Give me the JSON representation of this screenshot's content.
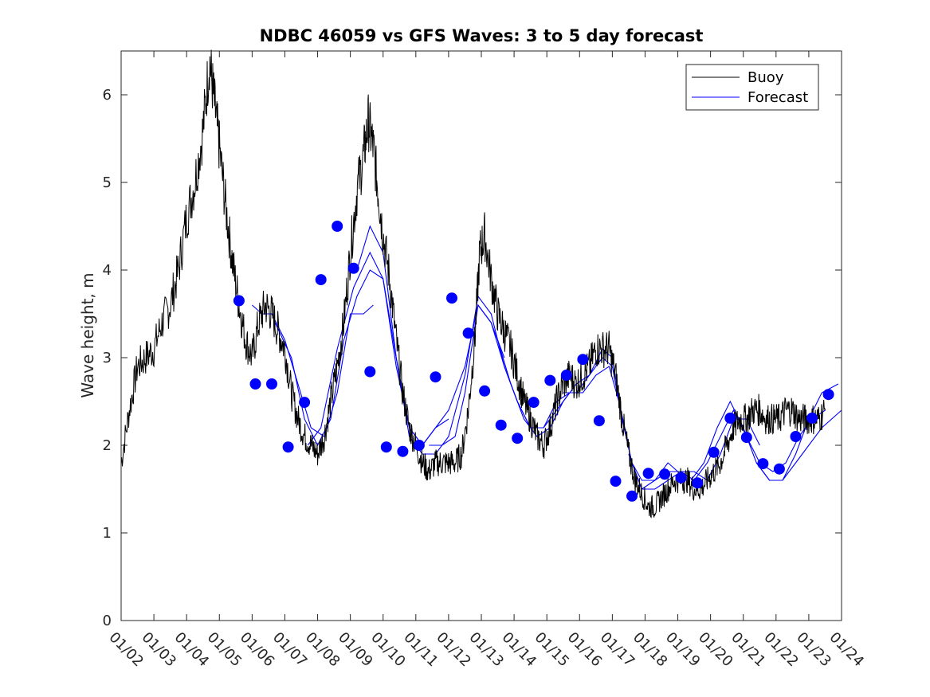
{
  "chart_data": {
    "type": "line",
    "title": "NDBC 46059 vs GFS Waves: 3 to 5 day forecast",
    "xlabel": "",
    "ylabel": "Wave height, m",
    "xlim": [
      0,
      22
    ],
    "ylim": [
      0,
      6.5
    ],
    "grid": false,
    "legend_placement": "top-right",
    "x_tick_labels": [
      "01/02",
      "01/03",
      "01/04",
      "01/05",
      "01/06",
      "01/07",
      "01/08",
      "01/09",
      "01/10",
      "01/11",
      "01/12",
      "01/13",
      "01/14",
      "01/15",
      "01/16",
      "01/17",
      "01/18",
      "01/19",
      "01/20",
      "01/21",
      "01/22",
      "01/23",
      "01/24"
    ],
    "y_ticks": [
      0,
      1,
      2,
      3,
      4,
      5,
      6
    ],
    "series": [
      {
        "name": "Buoy",
        "color": "#000000",
        "note": "x in days since 01/02 00:00, y in m",
        "points": [
          [
            0.0,
            1.8
          ],
          [
            0.25,
            2.4
          ],
          [
            0.5,
            2.9
          ],
          [
            0.75,
            3.0
          ],
          [
            1.0,
            3.1
          ],
          [
            1.25,
            3.4
          ],
          [
            1.5,
            3.6
          ],
          [
            1.75,
            4.0
          ],
          [
            2.0,
            4.6
          ],
          [
            2.25,
            5.0
          ],
          [
            2.5,
            5.6
          ],
          [
            2.7,
            6.4
          ],
          [
            2.85,
            5.9
          ],
          [
            3.0,
            5.4
          ],
          [
            3.2,
            4.7
          ],
          [
            3.4,
            4.1
          ],
          [
            3.6,
            3.6
          ],
          [
            3.8,
            3.2
          ],
          [
            4.0,
            3.0
          ],
          [
            4.2,
            3.4
          ],
          [
            4.4,
            3.6
          ],
          [
            4.6,
            3.5
          ],
          [
            4.8,
            3.3
          ],
          [
            5.0,
            3.1
          ],
          [
            5.2,
            2.6
          ],
          [
            5.4,
            2.3
          ],
          [
            5.6,
            2.1
          ],
          [
            5.8,
            2.0
          ],
          [
            6.0,
            1.9
          ],
          [
            6.2,
            2.1
          ],
          [
            6.4,
            2.5
          ],
          [
            6.6,
            2.9
          ],
          [
            6.8,
            3.4
          ],
          [
            7.0,
            4.2
          ],
          [
            7.2,
            4.9
          ],
          [
            7.4,
            5.3
          ],
          [
            7.55,
            5.7
          ],
          [
            7.7,
            5.4
          ],
          [
            7.85,
            4.9
          ],
          [
            8.0,
            4.4
          ],
          [
            8.2,
            3.9
          ],
          [
            8.4,
            3.2
          ],
          [
            8.6,
            2.6
          ],
          [
            8.8,
            2.2
          ],
          [
            9.0,
            2.0
          ],
          [
            9.2,
            1.8
          ],
          [
            9.4,
            1.7
          ],
          [
            9.6,
            1.8
          ],
          [
            9.8,
            1.8
          ],
          [
            10.0,
            1.8
          ],
          [
            10.2,
            1.8
          ],
          [
            10.4,
            1.9
          ],
          [
            10.6,
            2.4
          ],
          [
            10.8,
            3.2
          ],
          [
            10.95,
            4.2
          ],
          [
            11.1,
            4.4
          ],
          [
            11.3,
            3.9
          ],
          [
            11.5,
            3.5
          ],
          [
            11.7,
            3.3
          ],
          [
            11.9,
            3.1
          ],
          [
            12.1,
            2.8
          ],
          [
            12.3,
            2.5
          ],
          [
            12.5,
            2.3
          ],
          [
            12.7,
            2.1
          ],
          [
            12.9,
            2.0
          ],
          [
            13.1,
            2.2
          ],
          [
            13.3,
            2.5
          ],
          [
            13.5,
            2.7
          ],
          [
            13.7,
            2.8
          ],
          [
            13.9,
            2.7
          ],
          [
            14.1,
            2.8
          ],
          [
            14.3,
            2.9
          ],
          [
            14.5,
            3.1
          ],
          [
            14.7,
            3.1
          ],
          [
            14.9,
            3.1
          ],
          [
            15.1,
            2.8
          ],
          [
            15.3,
            2.3
          ],
          [
            15.5,
            1.9
          ],
          [
            15.7,
            1.6
          ],
          [
            15.9,
            1.45
          ],
          [
            16.1,
            1.3
          ],
          [
            16.3,
            1.3
          ],
          [
            16.5,
            1.4
          ],
          [
            16.7,
            1.5
          ],
          [
            16.9,
            1.6
          ],
          [
            17.1,
            1.6
          ],
          [
            17.3,
            1.6
          ],
          [
            17.5,
            1.5
          ],
          [
            17.7,
            1.5
          ],
          [
            17.9,
            1.6
          ],
          [
            18.1,
            1.7
          ],
          [
            18.3,
            1.8
          ],
          [
            18.5,
            2.0
          ],
          [
            18.7,
            2.2
          ],
          [
            18.9,
            2.3
          ],
          [
            19.1,
            2.3
          ],
          [
            19.3,
            2.4
          ],
          [
            19.5,
            2.4
          ],
          [
            19.7,
            2.3
          ],
          [
            19.9,
            2.3
          ],
          [
            20.1,
            2.3
          ],
          [
            20.3,
            2.4
          ],
          [
            20.5,
            2.4
          ],
          [
            20.7,
            2.3
          ],
          [
            20.9,
            2.3
          ],
          [
            21.1,
            2.3
          ],
          [
            21.3,
            2.3
          ],
          [
            21.5,
            2.4
          ]
        ]
      },
      {
        "name": "Forecast",
        "color": "#0000ff",
        "note": "overlapping forecast runs, x in days, y in m",
        "runs": [
          [
            [
              4.0,
              3.6
            ],
            [
              4.3,
              3.5
            ],
            [
              4.6,
              3.5
            ],
            [
              5.0,
              3.2
            ],
            [
              5.4,
              2.7
            ],
            [
              5.8,
              2.2
            ],
            [
              6.2,
              2.1
            ],
            [
              6.6,
              2.6
            ],
            [
              7.0,
              3.5
            ],
            [
              7.4,
              3.5
            ],
            [
              7.7,
              3.6
            ]
          ],
          [
            [
              4.7,
              3.4
            ],
            [
              5.2,
              3.0
            ],
            [
              5.6,
              2.3
            ],
            [
              6.0,
              2.0
            ],
            [
              6.4,
              2.3
            ],
            [
              6.8,
              3.2
            ],
            [
              7.2,
              3.7
            ],
            [
              7.6,
              4.0
            ],
            [
              8.0,
              3.9
            ],
            [
              8.4,
              3.0
            ],
            [
              8.8,
              2.2
            ],
            [
              9.2,
              2.0
            ],
            [
              9.6,
              2.2
            ],
            [
              10.0,
              2.3
            ]
          ],
          [
            [
              5.7,
              2.0
            ],
            [
              6.1,
              2.2
            ],
            [
              6.6,
              3.1
            ],
            [
              7.1,
              3.8
            ],
            [
              7.6,
              4.2
            ],
            [
              8.0,
              3.9
            ],
            [
              8.4,
              2.9
            ],
            [
              8.8,
              2.2
            ],
            [
              9.2,
              2.0
            ],
            [
              9.6,
              2.2
            ],
            [
              10.0,
              2.4
            ],
            [
              10.5,
              2.9
            ],
            [
              10.9,
              3.6
            ],
            [
              11.3,
              3.4
            ],
            [
              11.7,
              3.0
            ]
          ],
          [
            [
              7.2,
              4.0
            ],
            [
              7.6,
              4.5
            ],
            [
              8.0,
              4.2
            ],
            [
              8.4,
              3.0
            ],
            [
              8.8,
              2.1
            ],
            [
              9.2,
              1.9
            ],
            [
              9.6,
              1.9
            ],
            [
              10.0,
              2.1
            ],
            [
              10.5,
              2.8
            ],
            [
              10.9,
              3.7
            ],
            [
              11.3,
              3.5
            ],
            [
              11.7,
              2.9
            ],
            [
              12.1,
              2.5
            ],
            [
              12.5,
              2.2
            ],
            [
              12.9,
              2.2
            ],
            [
              13.3,
              2.4
            ],
            [
              13.7,
              2.6
            ]
          ],
          [
            [
              9.4,
              2.0
            ],
            [
              9.8,
              2.0
            ],
            [
              10.2,
              2.1
            ],
            [
              10.5,
              2.6
            ],
            [
              10.9,
              3.6
            ],
            [
              11.3,
              3.4
            ],
            [
              11.7,
              2.9
            ],
            [
              12.1,
              2.5
            ],
            [
              12.5,
              2.2
            ],
            [
              12.9,
              2.2
            ],
            [
              13.3,
              2.5
            ],
            [
              13.7,
              2.6
            ],
            [
              14.1,
              2.6
            ],
            [
              14.5,
              2.8
            ],
            [
              14.9,
              2.9
            ],
            [
              15.2,
              2.5
            ],
            [
              15.5,
              2.0
            ]
          ],
          [
            [
              11.5,
              3.2
            ],
            [
              11.9,
              2.7
            ],
            [
              12.3,
              2.3
            ],
            [
              12.7,
              2.1
            ],
            [
              13.1,
              2.2
            ],
            [
              13.5,
              2.5
            ],
            [
              13.9,
              2.7
            ],
            [
              14.3,
              2.8
            ],
            [
              14.7,
              3.0
            ],
            [
              15.0,
              2.9
            ],
            [
              15.3,
              2.3
            ],
            [
              15.6,
              1.8
            ],
            [
              15.9,
              1.6
            ],
            [
              16.3,
              1.6
            ],
            [
              16.7,
              1.8
            ],
            [
              17.0,
              1.7
            ],
            [
              17.4,
              1.7
            ]
          ],
          [
            [
              13.5,
              2.6
            ],
            [
              13.9,
              2.6
            ],
            [
              14.3,
              2.8
            ],
            [
              14.7,
              3.1
            ],
            [
              15.0,
              3.0
            ],
            [
              15.3,
              2.3
            ],
            [
              15.6,
              1.8
            ],
            [
              15.9,
              1.5
            ],
            [
              16.3,
              1.5
            ],
            [
              16.7,
              1.6
            ],
            [
              17.1,
              1.7
            ],
            [
              17.5,
              1.7
            ],
            [
              17.9,
              1.6
            ],
            [
              18.3,
              1.9
            ],
            [
              18.7,
              2.3
            ],
            [
              19.1,
              2.3
            ],
            [
              19.5,
              2.0
            ]
          ],
          [
            [
              15.5,
              1.9
            ],
            [
              15.9,
              1.5
            ],
            [
              16.3,
              1.6
            ],
            [
              16.7,
              1.7
            ],
            [
              17.1,
              1.7
            ],
            [
              17.5,
              1.6
            ],
            [
              17.9,
              1.8
            ],
            [
              18.3,
              2.1
            ],
            [
              18.7,
              2.4
            ],
            [
              19.1,
              2.1
            ],
            [
              19.5,
              1.8
            ],
            [
              19.9,
              1.7
            ],
            [
              20.3,
              1.8
            ],
            [
              20.7,
              2.1
            ],
            [
              21.1,
              2.3
            ],
            [
              21.5,
              2.4
            ]
          ],
          [
            [
              17.4,
              1.6
            ],
            [
              17.8,
              1.8
            ],
            [
              18.2,
              2.2
            ],
            [
              18.6,
              2.5
            ],
            [
              19.0,
              2.2
            ],
            [
              19.4,
              1.8
            ],
            [
              19.8,
              1.6
            ],
            [
              20.2,
              1.6
            ],
            [
              20.6,
              1.9
            ],
            [
              21.0,
              2.3
            ],
            [
              21.4,
              2.6
            ],
            [
              21.9,
              2.7
            ]
          ],
          [
            [
              19.4,
              1.8
            ],
            [
              19.8,
              1.6
            ],
            [
              20.2,
              1.6
            ],
            [
              20.6,
              1.8
            ],
            [
              21.0,
              2.0
            ],
            [
              21.4,
              2.2
            ],
            [
              22.0,
              2.4
            ]
          ]
        ]
      }
    ],
    "forecast_markers": [
      [
        3.6,
        3.65
      ],
      [
        4.1,
        2.7
      ],
      [
        4.6,
        2.7
      ],
      [
        5.1,
        1.98
      ],
      [
        5.6,
        2.49
      ],
      [
        6.1,
        3.89
      ],
      [
        6.6,
        4.5
      ],
      [
        7.1,
        4.02
      ],
      [
        7.6,
        2.84
      ],
      [
        8.1,
        1.98
      ],
      [
        8.6,
        1.93
      ],
      [
        9.1,
        2.0
      ],
      [
        9.6,
        2.78
      ],
      [
        10.1,
        3.68
      ],
      [
        10.6,
        3.28
      ],
      [
        11.1,
        2.62
      ],
      [
        11.6,
        2.23
      ],
      [
        12.1,
        2.08
      ],
      [
        12.6,
        2.49
      ],
      [
        13.1,
        2.74
      ],
      [
        13.6,
        2.8
      ],
      [
        14.1,
        2.98
      ],
      [
        14.6,
        2.28
      ],
      [
        15.1,
        1.59
      ],
      [
        15.6,
        1.42
      ],
      [
        16.1,
        1.68
      ],
      [
        16.6,
        1.67
      ],
      [
        17.1,
        1.63
      ],
      [
        17.6,
        1.57
      ],
      [
        18.1,
        1.92
      ],
      [
        18.6,
        2.31
      ],
      [
        19.1,
        2.09
      ],
      [
        19.6,
        1.79
      ],
      [
        20.1,
        1.73
      ],
      [
        20.6,
        2.1
      ],
      [
        21.1,
        2.31
      ],
      [
        21.6,
        2.58
      ]
    ],
    "legend": [
      "Buoy",
      "Forecast"
    ]
  }
}
